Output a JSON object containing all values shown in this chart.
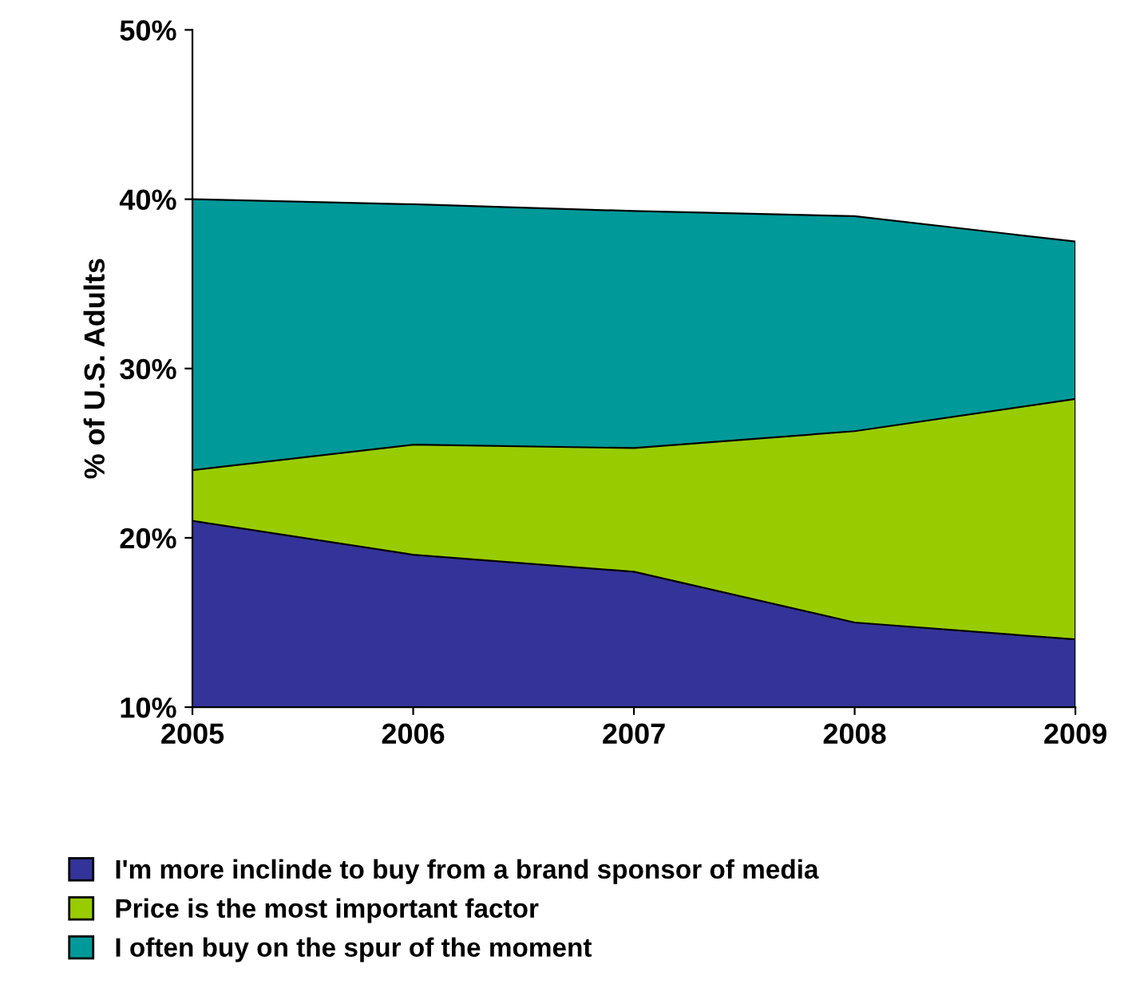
{
  "chart_data": {
    "type": "area",
    "ylabel": "% of U.S. Adults",
    "x": [
      "2005",
      "2006",
      "2007",
      "2008",
      "2009"
    ],
    "series": [
      {
        "name": "I'm more inclinde to buy from a brand sponsor of media",
        "color": "#333399",
        "values": [
          21,
          19,
          18,
          15,
          14
        ]
      },
      {
        "name": "Price is the most important factor",
        "color": "#99cc00",
        "values": [
          24,
          25.5,
          25.3,
          26.3,
          28.2
        ]
      },
      {
        "name": "I often buy on the spur of the moment",
        "color": "#009999",
        "values": [
          40,
          39.7,
          39.3,
          39,
          37.5
        ]
      }
    ],
    "xlim": [
      "2005",
      "2009"
    ],
    "xticks": [
      "2005",
      "2006",
      "2007",
      "2008",
      "2009"
    ],
    "ylim": [
      10,
      50
    ],
    "yticks": [
      {
        "value": 10,
        "label": "10%"
      },
      {
        "value": 20,
        "label": "20%"
      },
      {
        "value": 30,
        "label": "30%"
      },
      {
        "value": 40,
        "label": "40%"
      },
      {
        "value": 50,
        "label": "50%"
      }
    ],
    "grid": false,
    "legend": "bottom"
  }
}
